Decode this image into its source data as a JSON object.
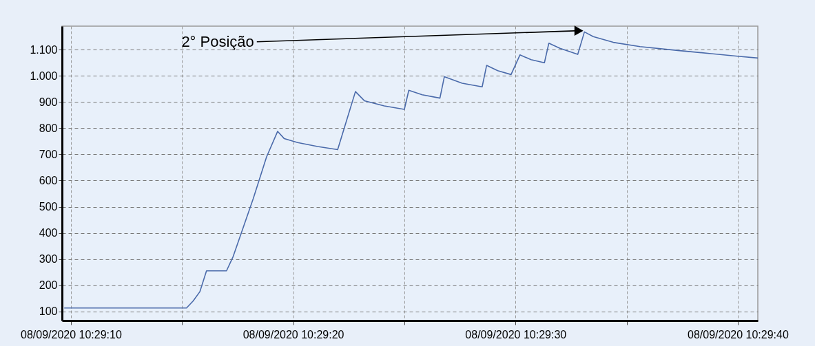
{
  "chart_data": {
    "type": "line",
    "x": [
      "2020-09-08T10:29:09.7",
      "2020-09-08T10:29:15.2",
      "2020-09-08T10:29:15.5",
      "2020-09-08T10:29:15.8",
      "2020-09-08T10:29:16.1",
      "2020-09-08T10:29:17.0",
      "2020-09-08T10:29:17.3",
      "2020-09-08T10:29:18.2",
      "2020-09-08T10:29:18.8",
      "2020-09-08T10:29:19.3",
      "2020-09-08T10:29:19.6",
      "2020-09-08T10:29:20.2",
      "2020-09-08T10:29:21.1",
      "2020-09-08T10:29:22.0",
      "2020-09-08T10:29:22.8",
      "2020-09-08T10:29:23.2",
      "2020-09-08T10:29:24.1",
      "2020-09-08T10:29:25.0",
      "2020-09-08T10:29:25.2",
      "2020-09-08T10:29:25.8",
      "2020-09-08T10:29:26.6",
      "2020-09-08T10:29:26.8",
      "2020-09-08T10:29:27.6",
      "2020-09-08T10:29:28.5",
      "2020-09-08T10:29:28.7",
      "2020-09-08T10:29:29.2",
      "2020-09-08T10:29:29.8",
      "2020-09-08T10:29:30.2",
      "2020-09-08T10:29:30.7",
      "2020-09-08T10:29:31.3",
      "2020-09-08T10:29:31.5",
      "2020-09-08T10:29:32.0",
      "2020-09-08T10:29:32.8",
      "2020-09-08T10:29:33.1",
      "2020-09-08T10:29:33.5",
      "2020-09-08T10:29:34.4",
      "2020-09-08T10:29:35.6",
      "2020-09-08T10:29:37.3",
      "2020-09-08T10:29:38.8",
      "2020-09-08T10:29:40.0",
      "2020-09-08T10:29:40.9"
    ],
    "series": [
      {
        "color": "#4a6aaa",
        "values": [
          113,
          113,
          140,
          175,
          255,
          255,
          310,
          530,
          690,
          788,
          760,
          745,
          730,
          718,
          940,
          905,
          885,
          872,
          945,
          928,
          915,
          997,
          972,
          958,
          1040,
          1020,
          1005,
          1080,
          1062,
          1050,
          1125,
          1105,
          1082,
          1168,
          1150,
          1128,
          1112,
          1097,
          1085,
          1075,
          1068
        ]
      }
    ],
    "xlim": [
      "2020-09-08T10:29:09.6",
      "2020-09-08T10:29:40.9"
    ],
    "xticks": [
      {
        "value": "2020-09-08T10:29:10",
        "label": "08/09/2020 10:29:10"
      },
      {
        "value": "2020-09-08T10:29:15",
        "label": null
      },
      {
        "value": "2020-09-08T10:29:20",
        "label": "08/09/2020 10:29:20"
      },
      {
        "value": "2020-09-08T10:29:25",
        "label": null
      },
      {
        "value": "2020-09-08T10:29:30",
        "label": "08/09/2020 10:29:30"
      },
      {
        "value": "2020-09-08T10:29:35",
        "label": null
      },
      {
        "value": "2020-09-08T10:29:40",
        "label": "08/09/2020 10:29:40"
      }
    ],
    "ylim": [
      65,
      1190
    ],
    "yticks": [
      100,
      200,
      300,
      400,
      500,
      600,
      700,
      800,
      900,
      {
        "value": 1000,
        "label": "1.000"
      },
      {
        "value": 1100,
        "label": "1.100"
      }
    ],
    "grid": true,
    "annotations": [
      {
        "text": "2° Posição",
        "x": "2020-09-08T10:29:33.1",
        "y": 1168
      }
    ]
  }
}
